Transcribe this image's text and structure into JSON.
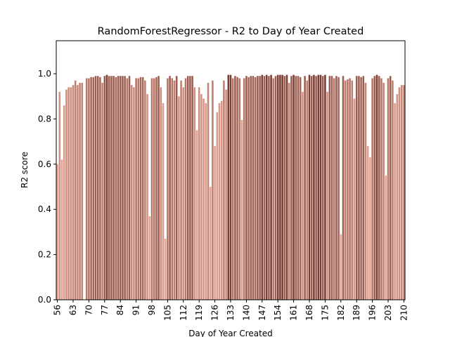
{
  "chart_data": {
    "type": "bar",
    "title": "RandomForestRegressor - R2 to Day of Year Created",
    "xlabel": "Day of Year Created",
    "ylabel": "R2 score",
    "palette": [
      "#e6a593",
      "#6e3128"
    ],
    "categories": [
      "56",
      null,
      null,
      null,
      null,
      null,
      null,
      "63",
      null,
      null,
      null,
      null,
      null,
      null,
      "70",
      null,
      null,
      null,
      null,
      null,
      null,
      "77",
      null,
      null,
      null,
      null,
      null,
      null,
      "84",
      null,
      null,
      null,
      null,
      null,
      null,
      "91",
      null,
      null,
      null,
      null,
      null,
      null,
      "98",
      null,
      null,
      null,
      null,
      null,
      null,
      "105",
      null,
      null,
      null,
      null,
      null,
      null,
      "112",
      null,
      null,
      null,
      null,
      null,
      null,
      "119",
      null,
      null,
      null,
      null,
      null,
      null,
      "126",
      null,
      null,
      null,
      null,
      null,
      null,
      "133",
      null,
      null,
      null,
      null,
      null,
      null,
      "140",
      null,
      null,
      null,
      null,
      null,
      null,
      "147",
      null,
      null,
      null,
      null,
      null,
      null,
      "154",
      null,
      null,
      null,
      null,
      null,
      null,
      "161",
      null,
      null,
      null,
      null,
      null,
      null,
      "168",
      null,
      null,
      null,
      null,
      null,
      null,
      "175",
      null,
      null,
      null,
      null,
      null,
      null,
      "182",
      null,
      null,
      null,
      null,
      null,
      null,
      "189",
      null,
      null,
      null,
      null,
      null,
      null,
      "196",
      null,
      null,
      null,
      null,
      null,
      null,
      "203",
      null,
      null,
      null,
      null,
      null,
      null,
      "210"
    ],
    "values": [
      0.6,
      0.92,
      0.62,
      0.86,
      0.93,
      0.94,
      0.94,
      0.95,
      0.97,
      0.95,
      0.96,
      0.96,
      null,
      0.98,
      0.98,
      0.985,
      0.985,
      0.99,
      0.99,
      0.985,
      0.96,
      0.99,
      0.995,
      0.99,
      0.99,
      0.99,
      0.985,
      0.99,
      0.99,
      0.99,
      0.99,
      0.98,
      0.99,
      0.95,
      0.94,
      0.98,
      0.98,
      0.985,
      0.985,
      0.97,
      0.91,
      0.37,
      0.98,
      0.98,
      0.985,
      0.99,
      0.94,
      0.87,
      0.27,
      0.98,
      0.99,
      0.98,
      0.97,
      0.99,
      0.9,
      0.97,
      0.94,
      0.98,
      0.99,
      0.99,
      0.99,
      0.94,
      0.75,
      0.94,
      0.91,
      0.89,
      0.87,
      0.96,
      0.5,
      0.97,
      0.68,
      0.83,
      0.87,
      0.88,
      0.97,
      0.93,
      0.995,
      0.995,
      0.98,
      0.99,
      0.985,
      0.98,
      0.795,
      0.98,
      0.99,
      0.985,
      0.99,
      0.99,
      0.985,
      0.99,
      0.99,
      0.995,
      0.99,
      0.995,
      0.99,
      0.995,
      0.98,
      0.99,
      0.995,
      0.995,
      0.995,
      0.99,
      0.995,
      0.96,
      0.99,
      0.995,
      0.99,
      0.99,
      0.985,
      0.92,
      0.99,
      0.97,
      0.995,
      0.99,
      0.995,
      0.99,
      0.995,
      0.995,
      0.99,
      0.995,
      0.92,
      0.99,
      0.99,
      0.98,
      0.99,
      0.985,
      0.29,
      0.99,
      0.97,
      0.975,
      0.98,
      0.97,
      0.89,
      0.99,
      0.99,
      0.985,
      0.99,
      0.96,
      0.68,
      0.63,
      0.98,
      0.99,
      0.995,
      0.99,
      0.98,
      0.96,
      0.55,
      0.98,
      0.99,
      0.97,
      0.87,
      0.91,
      0.94,
      0.95,
      0.95
    ],
    "ylim": [
      0,
      1.146
    ],
    "yticks": [
      {
        "value": 0,
        "label": "0.0"
      },
      0.2,
      0.4,
      0.6,
      0.8,
      {
        "value": 1,
        "label": "1.0"
      }
    ],
    "grid": false
  }
}
